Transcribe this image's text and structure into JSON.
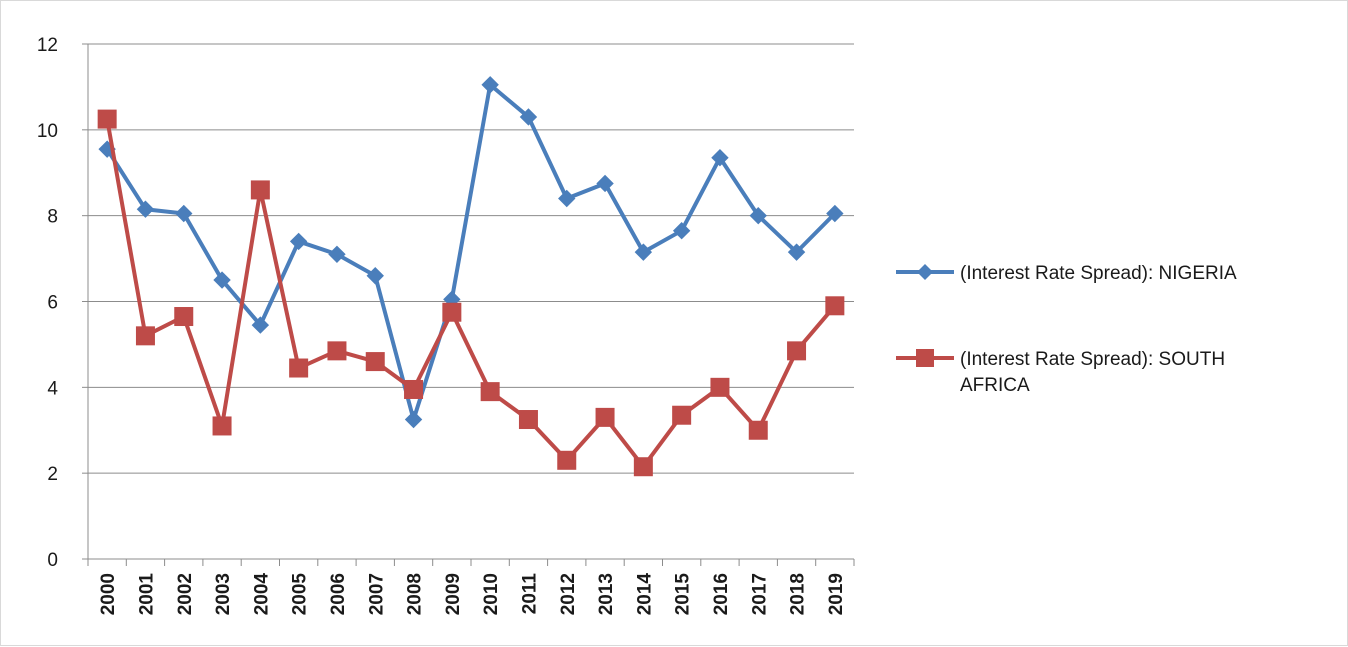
{
  "chart_data": {
    "type": "line",
    "title": "",
    "xlabel": "",
    "ylabel": "",
    "categories": [
      "2000",
      "2001",
      "2002",
      "2003",
      "2004",
      "2005",
      "2006",
      "2007",
      "2008",
      "2009",
      "2010",
      "2011",
      "2012",
      "2013",
      "2014",
      "2015",
      "2016",
      "2017",
      "2018",
      "2019"
    ],
    "ylim": [
      0,
      12
    ],
    "yticks": [
      0,
      2,
      4,
      6,
      8,
      10,
      12
    ],
    "grid": true,
    "legend_position": "right",
    "series": [
      {
        "name": "(Interest Rate Spread): NIGERIA",
        "color": "#4a7ebb",
        "marker": "diamond",
        "values": [
          9.55,
          8.15,
          8.05,
          6.5,
          5.45,
          7.4,
          7.1,
          6.6,
          3.25,
          6.05,
          11.05,
          10.3,
          8.4,
          8.75,
          7.15,
          7.65,
          9.35,
          8.0,
          7.15,
          8.05
        ]
      },
      {
        "name": "(Interest Rate Spread): SOUTH AFRICA",
        "color": "#be4b48",
        "marker": "square",
        "values": [
          10.25,
          5.2,
          5.65,
          3.1,
          8.6,
          4.45,
          4.85,
          4.6,
          3.95,
          5.75,
          3.9,
          3.25,
          2.3,
          3.3,
          2.15,
          3.35,
          4.0,
          3.0,
          4.85,
          5.9
        ]
      }
    ],
    "legend": {
      "items": [
        {
          "lines": [
            "(Interest Rate Spread): NIGERIA"
          ]
        },
        {
          "lines": [
            "(Interest Rate Spread): SOUTH",
            "AFRICA"
          ]
        }
      ]
    }
  }
}
